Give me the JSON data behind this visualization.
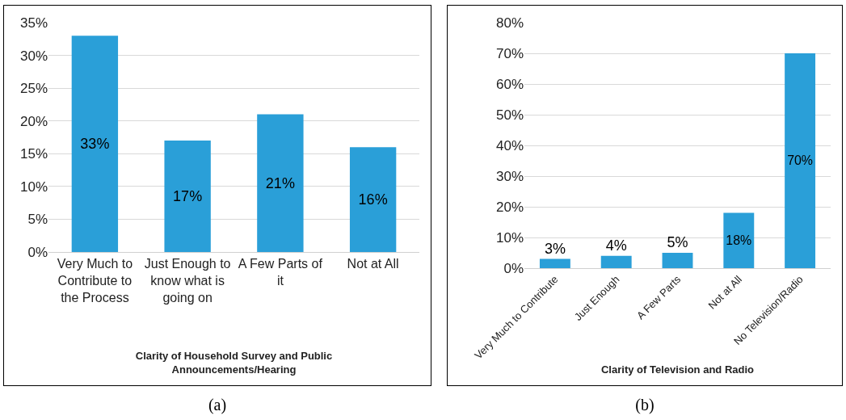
{
  "chart_data": [
    {
      "type": "bar",
      "xlabel": "Clarity of Household Survey and Public Announcements/Hearing",
      "categories": [
        "Very Much to Contribute to the Process",
        "Just Enough to know what is going on",
        "A Few Parts of it",
        "Not at All"
      ],
      "values": [
        33,
        17,
        21,
        16
      ],
      "value_labels": [
        "33%",
        "17%",
        "21%",
        "16%"
      ],
      "color": "#2a9fd8",
      "ylim": [
        0,
        35
      ],
      "yticks": [
        {
          "value": 0,
          "label": "0%"
        },
        {
          "value": 5,
          "label": "5%"
        },
        {
          "value": 10,
          "label": "10%"
        },
        {
          "value": 15,
          "label": "15%"
        },
        {
          "value": 20,
          "label": "20%"
        },
        {
          "value": 25,
          "label": "25%"
        },
        {
          "value": 30,
          "label": "30%"
        },
        {
          "value": 35,
          "label": "35%"
        }
      ],
      "grid": "y",
      "annotations": [
        "(a)"
      ]
    },
    {
      "type": "bar",
      "xlabel": "Clarity of Television and Radio",
      "categories": [
        "Very Much to Contribute",
        "Just Enough",
        "A Few Parts",
        "Not at All",
        "No Television/Radio"
      ],
      "values": [
        3,
        4,
        5,
        18,
        70
      ],
      "value_labels": [
        "3%",
        "4%",
        "5%",
        "18%",
        "70%"
      ],
      "color": "#2a9fd8",
      "ylim": [
        0,
        80
      ],
      "yticks": [
        {
          "value": 0,
          "label": "0%"
        },
        {
          "value": 10,
          "label": "10%"
        },
        {
          "value": 20,
          "label": "20%"
        },
        {
          "value": 30,
          "label": "30%"
        },
        {
          "value": 40,
          "label": "40%"
        },
        {
          "value": 50,
          "label": "50%"
        },
        {
          "value": 60,
          "label": "60%"
        },
        {
          "value": 70,
          "label": "70%"
        },
        {
          "value": 80,
          "label": "80%"
        }
      ],
      "grid": "y",
      "annotations": [
        "(b)"
      ]
    }
  ]
}
